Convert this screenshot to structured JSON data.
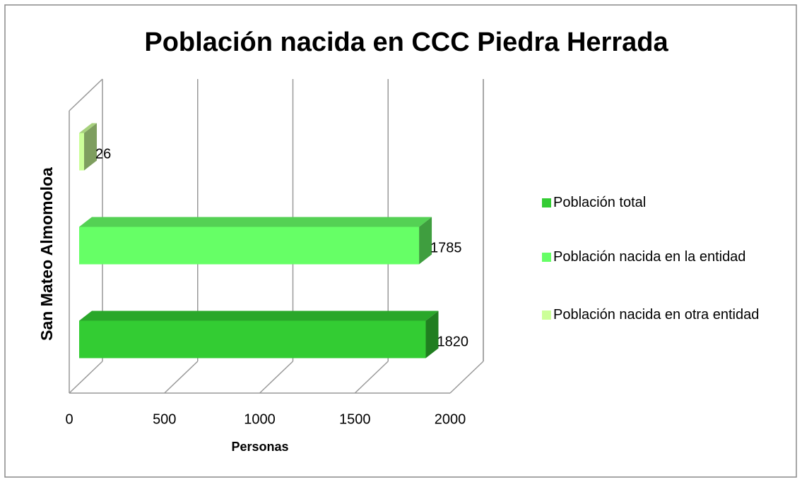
{
  "chart_data": {
    "type": "bar3d",
    "orientation": "horizontal",
    "title": "Población nacida en CCC Piedra Herrada",
    "categories": [
      "San Mateo Almomoloa"
    ],
    "series": [
      {
        "name": "Población total",
        "color": "#33cc33",
        "values": [
          1820
        ]
      },
      {
        "name": "Población nacida en la entidad",
        "color": "#66ff66",
        "values": [
          1785
        ]
      },
      {
        "name": "Población nacida en otra entidad",
        "color": "#ccff99",
        "values": [
          26
        ]
      }
    ],
    "xlabel": "Personas",
    "xlim": [
      0,
      2000
    ],
    "xticks": [
      0,
      500,
      1000,
      1500,
      2000
    ],
    "grid": true,
    "legend": "right"
  }
}
